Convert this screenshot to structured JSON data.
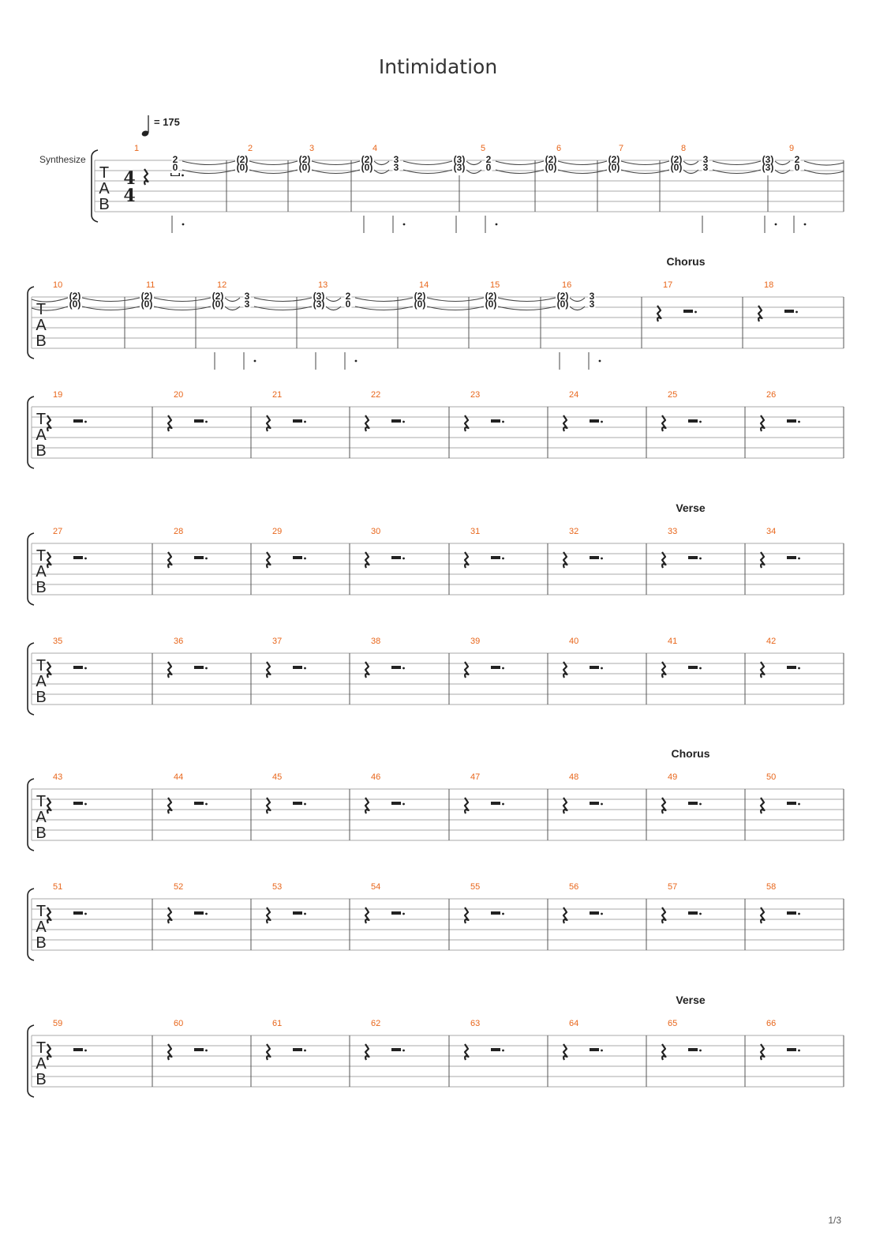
{
  "title": "Intimidation",
  "tempo": {
    "label": "= 175",
    "bpm": 175
  },
  "track_name": "Synthesize",
  "tab_letters": [
    "T",
    "A",
    "B"
  ],
  "time_signature": {
    "numerator": "4",
    "denominator": "4"
  },
  "rest_glyph": "quarter-rest-and-dotted-half-rest",
  "colors": {
    "measure_number": "#e8661b",
    "staff_line": "#a8a8a8",
    "ink": "#222222"
  },
  "section_markers": [
    {
      "label": "Chorus",
      "at_measure": 17
    },
    {
      "label": "Verse",
      "at_measure": 33
    },
    {
      "label": "Chorus",
      "at_measure": 49
    },
    {
      "label": "Verse",
      "at_measure": 65
    }
  ],
  "systems": [
    {
      "measures": [
        "1",
        "2",
        "3",
        "4",
        "5",
        "6",
        "7",
        "8",
        "9"
      ],
      "notes": [
        {
          "m": 0,
          "top": "2",
          "bot": "0"
        },
        {
          "m": 1,
          "top": "(2)",
          "bot": "(0)"
        },
        {
          "m": 2,
          "top": "(2)",
          "bot": "(0)"
        },
        {
          "m": 3,
          "top": "(2)",
          "bot": "(0)"
        },
        {
          "m": 3,
          "top": "3",
          "bot": "3"
        },
        {
          "m": 4,
          "top": "(3)",
          "bot": "(3)"
        },
        {
          "m": 4,
          "top": "2",
          "bot": "0"
        },
        {
          "m": 5,
          "top": "(2)",
          "bot": "(0)"
        },
        {
          "m": 6,
          "top": "(2)",
          "bot": "(0)"
        },
        {
          "m": 7,
          "top": "(2)",
          "bot": "(0)"
        },
        {
          "m": 7,
          "top": "3",
          "bot": "3"
        },
        {
          "m": 8,
          "top": "(3)",
          "bot": "(3)"
        },
        {
          "m": 8,
          "top": "2",
          "bot": "0"
        }
      ]
    },
    {
      "measures": [
        "10",
        "11",
        "12",
        "13",
        "14",
        "15",
        "16",
        "17",
        "18"
      ],
      "notes": [
        {
          "m": 0,
          "top": "(2)",
          "bot": "(0)"
        },
        {
          "m": 1,
          "top": "(2)",
          "bot": "(0)"
        },
        {
          "m": 2,
          "top": "(2)",
          "bot": "(0)"
        },
        {
          "m": 2,
          "top": "3",
          "bot": "3"
        },
        {
          "m": 3,
          "top": "(3)",
          "bot": "(3)"
        },
        {
          "m": 3,
          "top": "2",
          "bot": "0"
        },
        {
          "m": 4,
          "top": "(2)",
          "bot": "(0)"
        },
        {
          "m": 5,
          "top": "(2)",
          "bot": "(0)"
        },
        {
          "m": 6,
          "top": "(2)",
          "bot": "(0)"
        },
        {
          "m": 6,
          "top": "3",
          "bot": "3"
        }
      ]
    },
    {
      "measures": [
        "19",
        "20",
        "21",
        "22",
        "23",
        "24",
        "25",
        "26"
      ]
    },
    {
      "measures": [
        "27",
        "28",
        "29",
        "30",
        "31",
        "32",
        "33",
        "34"
      ]
    },
    {
      "measures": [
        "35",
        "36",
        "37",
        "38",
        "39",
        "40",
        "41",
        "42"
      ]
    },
    {
      "measures": [
        "43",
        "44",
        "45",
        "46",
        "47",
        "48",
        "49",
        "50"
      ]
    },
    {
      "measures": [
        "51",
        "52",
        "53",
        "54",
        "55",
        "56",
        "57",
        "58"
      ]
    },
    {
      "measures": [
        "59",
        "60",
        "61",
        "62",
        "63",
        "64",
        "65",
        "66"
      ]
    }
  ],
  "page_number": "1/3"
}
